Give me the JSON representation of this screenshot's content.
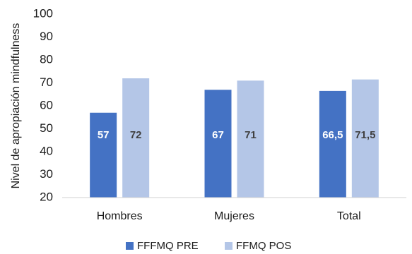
{
  "chart_data": {
    "type": "bar",
    "title": "",
    "xlabel": "",
    "ylabel": "Nivel de apropiación mindfulness",
    "ylim": [
      20,
      100
    ],
    "yticks": [
      20,
      30,
      40,
      50,
      60,
      70,
      80,
      90,
      100
    ],
    "categories": [
      "Hombres",
      "Mujeres",
      "Total"
    ],
    "series": [
      {
        "name": "FFFMQ PRE",
        "color": "#4472c4",
        "label_color": "#ffffff",
        "values": [
          57,
          67,
          66.5
        ],
        "labels": [
          "57",
          "67",
          "66,5"
        ]
      },
      {
        "name": "FFMQ POS",
        "color": "#b4c6e7",
        "label_color": "#404040",
        "values": [
          72,
          71,
          71.5
        ],
        "labels": [
          "72",
          "71",
          "71,5"
        ]
      }
    ],
    "grid": false,
    "legend_position": "bottom"
  }
}
